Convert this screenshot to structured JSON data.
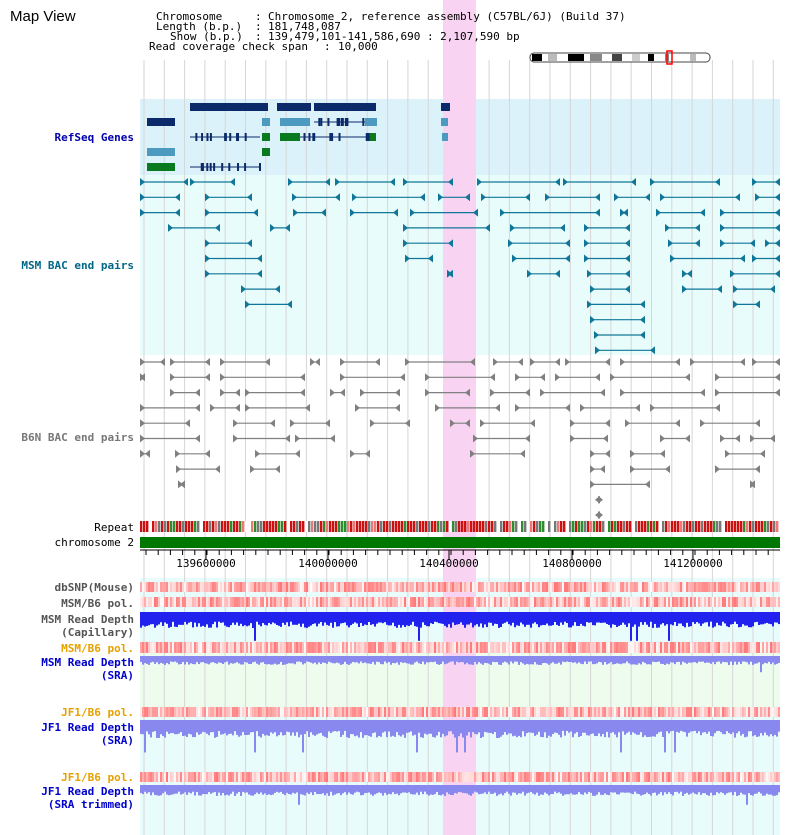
{
  "page": {
    "title": "Map View"
  },
  "info": {
    "chromosome_label": "Chromosome",
    "chromosome_value": "Chromosome 2, reference assembly (C57BL/6J) (Build 37)",
    "length_label": "Length (b.p.)",
    "length_value": "181,748,087",
    "show_label": "Show (b.p.)",
    "show_value": "139,479,101-141,586,690 : 2,107,590 bp",
    "coverage_label": "Read coverage check span",
    "coverage_value": "10,000"
  },
  "tracks": {
    "refseq": "RefSeq Genes",
    "msm_bac": "MSM BAC end pairs",
    "b6n_bac": "B6N BAC end pairs",
    "repeat": "Repeat",
    "chromosome": "chromosome 2",
    "dbsnp": "dbSNP(Mouse)",
    "msm_b6_pol_1": "MSM/B6 pol.",
    "msm_depth_cap_1": "MSM Read Depth",
    "msm_depth_cap_2": "(Capillary)",
    "msm_b6_pol_2": "MSM/B6 pol.",
    "msm_depth_sra_1": "MSM Read Depth",
    "msm_depth_sra_2": "(SRA)",
    "jf1_b6_pol_1": "JF1/B6 pol.",
    "jf1_depth_sra_1": "JF1 Read Depth",
    "jf1_depth_sra_2": "(SRA)",
    "jf1_b6_pol_2": "JF1/B6 pol.",
    "jf1_depth_trim_1": "JF1 Read Depth",
    "jf1_depth_trim_2": "(SRA trimmed)"
  },
  "axis": {
    "ticks": [
      "139600000",
      "140000000",
      "140400000",
      "140800000",
      "141200000"
    ]
  },
  "colors": {
    "refseq_label": "#0000aa",
    "msm_label": "#006688",
    "b6n_label": "#777777",
    "orange_label": "#e6a000",
    "blue_label": "#0000cc",
    "highlight": "#f9d4f2",
    "chrom_green": "#007700",
    "gene_dark": "#0a2a6a",
    "gene_mid": "#4c9ac0",
    "gene_green": "#0a7a1e",
    "msm_line": "#117799",
    "b6n_line": "#808080",
    "depth_strong": "#2222ee",
    "depth_light": "#8888ee"
  }
}
